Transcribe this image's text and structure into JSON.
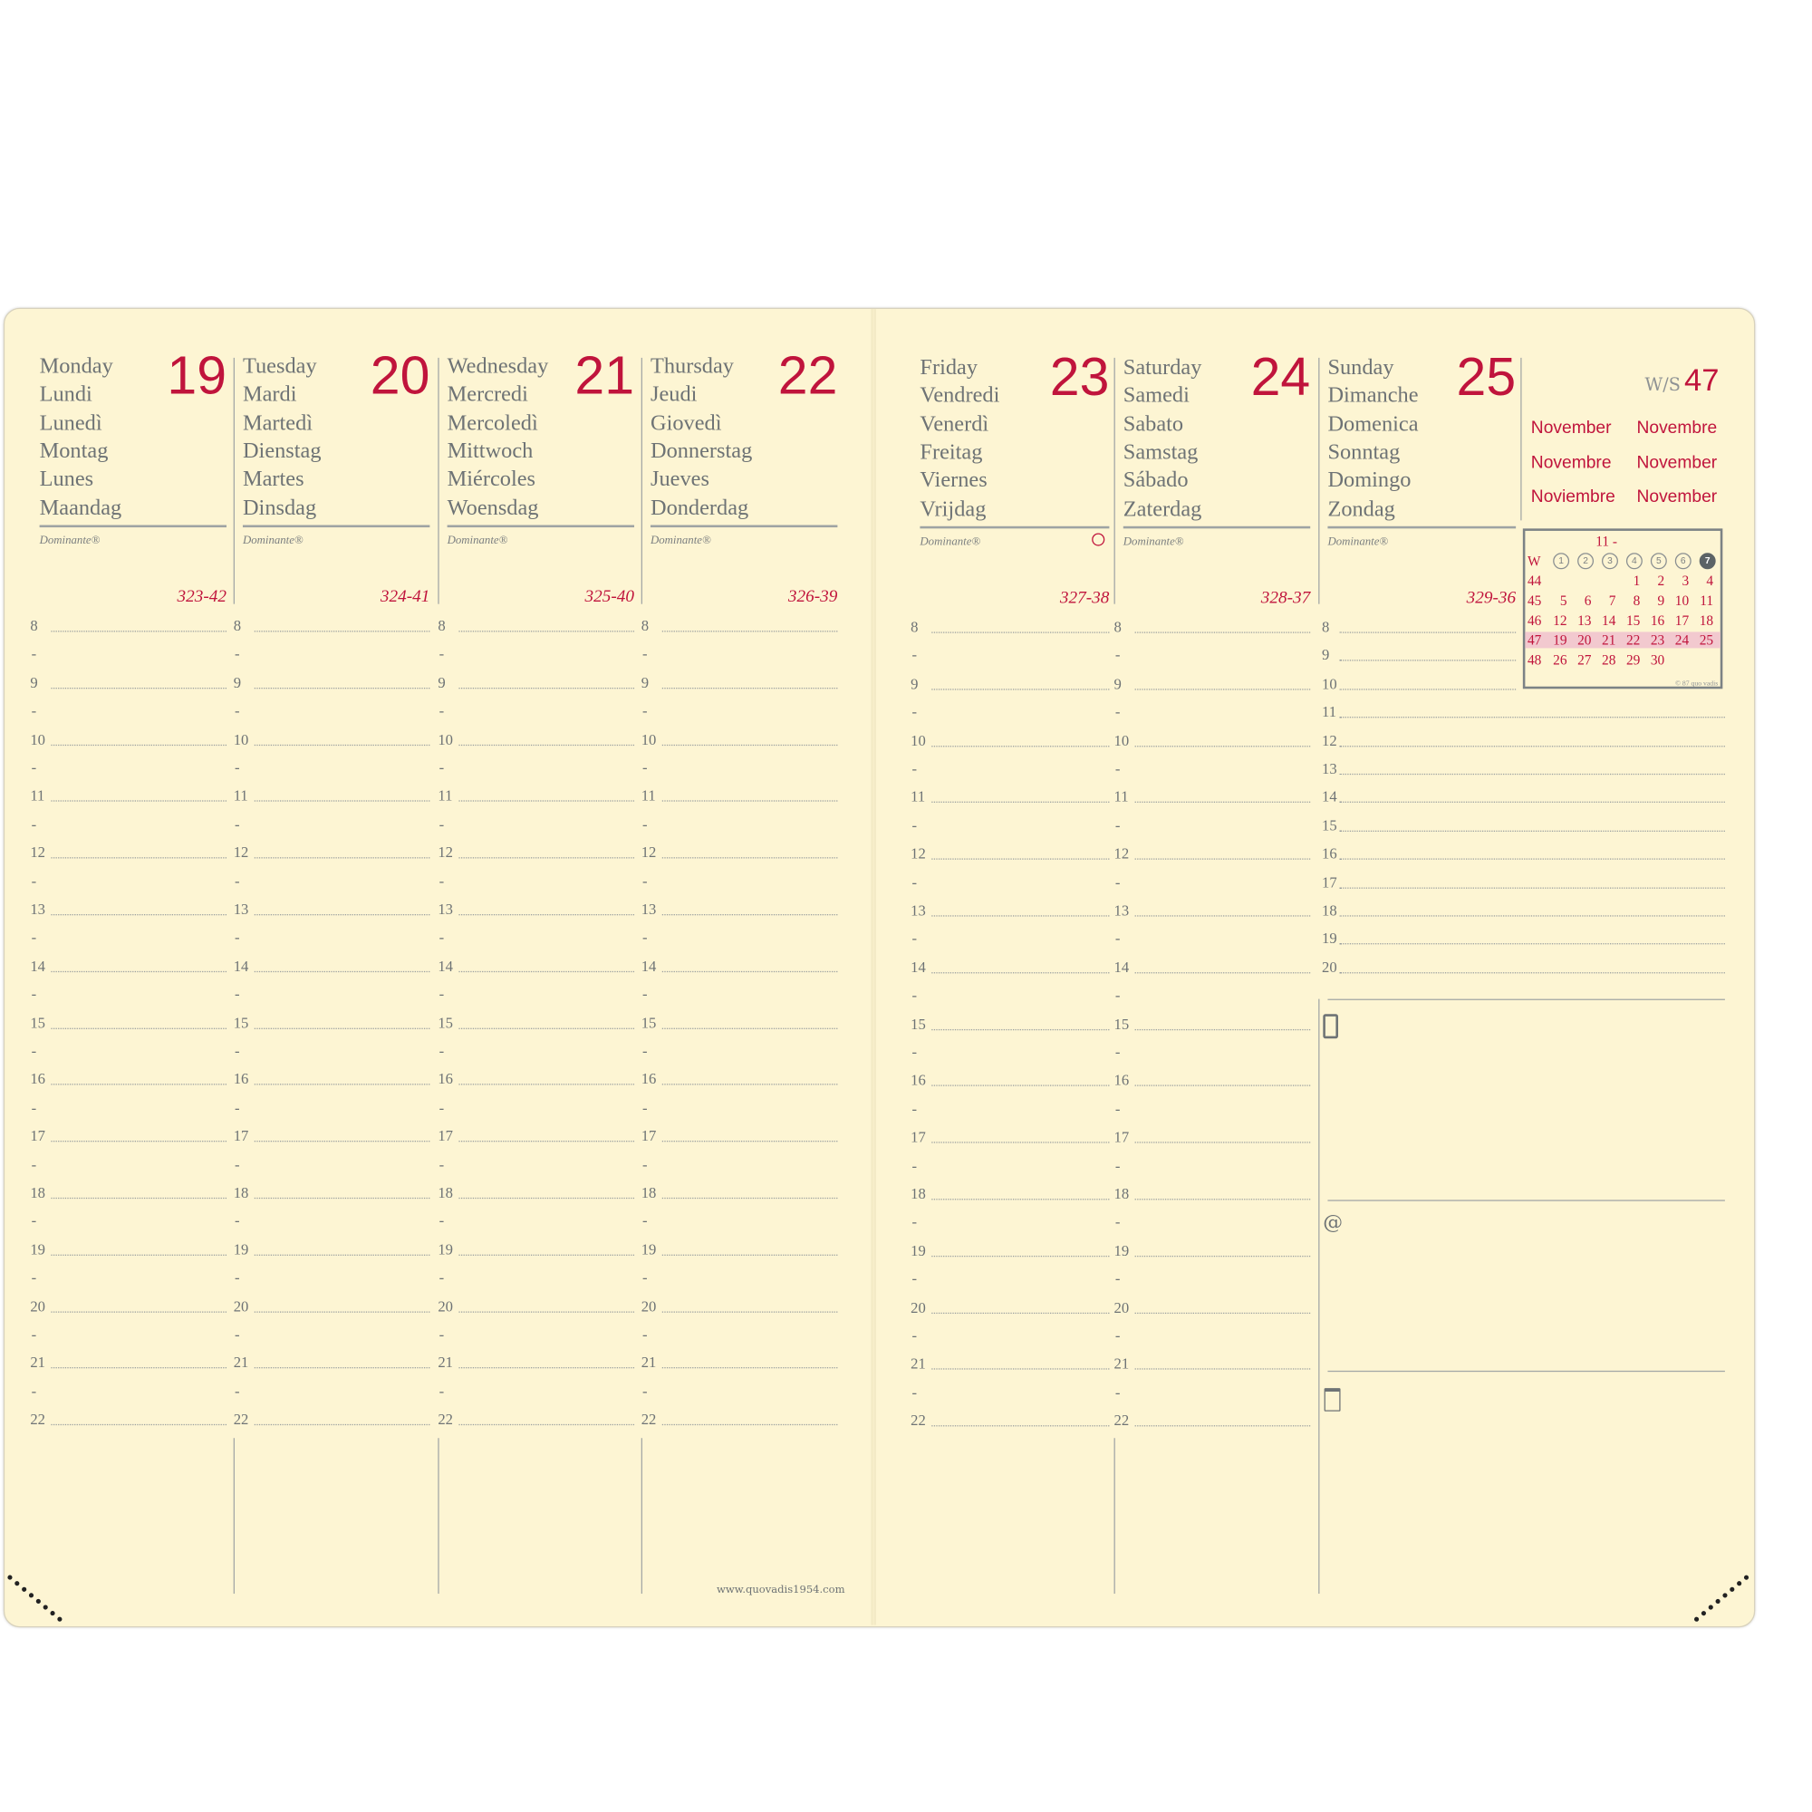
{
  "left_page": {
    "days": [
      {
        "names": [
          "Monday",
          "Lundi",
          "Lunedì",
          "Montag",
          "Lunes",
          "Maandag"
        ],
        "date": "19",
        "dominante": "Dominante®",
        "day_of_year": "323-42"
      },
      {
        "names": [
          "Tuesday",
          "Mardi",
          "Martedì",
          "Dienstag",
          "Martes",
          "Dinsdag"
        ],
        "date": "20",
        "dominante": "Dominante®",
        "day_of_year": "324-41"
      },
      {
        "names": [
          "Wednesday",
          "Mercredi",
          "Mercoledì",
          "Mittwoch",
          "Miércoles",
          "Woensdag"
        ],
        "date": "21",
        "dominante": "Dominante®",
        "day_of_year": "325-40"
      },
      {
        "names": [
          "Thursday",
          "Jeudi",
          "Giovedì",
          "Donnerstag",
          "Jueves",
          "Donderdag"
        ],
        "date": "22",
        "dominante": "Dominante®",
        "day_of_year": "326-39"
      }
    ],
    "footer_url": "www.quovadis1954.com"
  },
  "right_page": {
    "days": [
      {
        "names": [
          "Friday",
          "Vendredi",
          "Venerdì",
          "Freitag",
          "Viernes",
          "Vrijdag"
        ],
        "date": "23",
        "dominante": "Dominante®",
        "day_of_year": "327-38",
        "moon_phase": "first-quarter-circle"
      },
      {
        "names": [
          "Saturday",
          "Samedi",
          "Sabato",
          "Samstag",
          "Sábado",
          "Zaterdag"
        ],
        "date": "24",
        "dominante": "Dominante®",
        "day_of_year": "328-37"
      },
      {
        "names": [
          "Sunday",
          "Dimanche",
          "Domenica",
          "Sonntag",
          "Domingo",
          "Zondag"
        ],
        "date": "25",
        "dominante": "Dominante®",
        "day_of_year": "329-36"
      }
    ],
    "week": {
      "label": "W/S",
      "number": "47"
    },
    "month_names": [
      "November",
      "Novembre",
      "Novembre",
      "November",
      "Noviembre",
      "November"
    ],
    "mini_calendar": {
      "header": "11 -",
      "week_label": "W",
      "weekday_numbers": [
        "1",
        "2",
        "3",
        "4",
        "5",
        "6",
        "7"
      ],
      "rows": [
        {
          "week": "44",
          "days": [
            "",
            "",
            "",
            "1",
            "2",
            "3",
            "4"
          ]
        },
        {
          "week": "45",
          "days": [
            "5",
            "6",
            "7",
            "8",
            "9",
            "10",
            "11"
          ]
        },
        {
          "week": "46",
          "days": [
            "12",
            "13",
            "14",
            "15",
            "16",
            "17",
            "18"
          ]
        },
        {
          "week": "47",
          "days": [
            "19",
            "20",
            "21",
            "22",
            "23",
            "24",
            "25"
          ],
          "highlighted": true
        },
        {
          "week": "48",
          "days": [
            "26",
            "27",
            "28",
            "29",
            "30",
            "",
            ""
          ]
        }
      ],
      "copyright": "© 87 quo vadis"
    },
    "notes_icons": [
      "phone-icon",
      "at-icon",
      "notepad-icon"
    ],
    "notes_at": "@"
  },
  "hours": [
    "8",
    "9",
    "10",
    "11",
    "12",
    "13",
    "14",
    "15",
    "16",
    "17",
    "18",
    "19",
    "20",
    "21",
    "22"
  ],
  "sunday_hours": [
    "8",
    "9",
    "10",
    "11",
    "12",
    "13",
    "14",
    "15",
    "16",
    "17",
    "18",
    "19",
    "20"
  ],
  "half_marker": "-",
  "colors": {
    "accent": "#c0143c",
    "paper": "#fdf5d3",
    "text": "#6e7375",
    "highlight": "#f2c9cf"
  }
}
